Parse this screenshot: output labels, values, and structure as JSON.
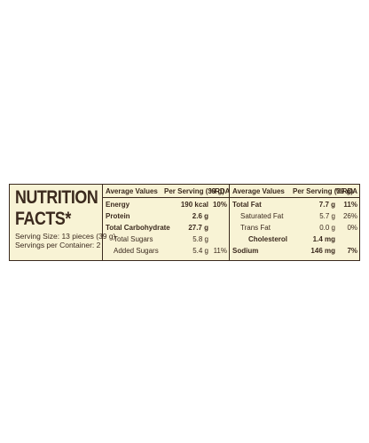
{
  "label": {
    "title_lines": [
      "NUTRITION",
      "FACTS*"
    ],
    "serving_size": "Serving Size: 13 pieces (39 g)",
    "servings": "Servings per Container: 2",
    "tables": [
      {
        "headers": [
          "Average Values",
          "Per Serving (39 g)",
          "%RDA"
        ],
        "rows": [
          {
            "name": "Energy",
            "amount": "190  kcal",
            "rda": "10%",
            "style": "bold"
          },
          {
            "name": "Protein",
            "amount": "2.6 g",
            "style": "bold"
          },
          {
            "name": "Total Carbohydrate",
            "amount": "27.7 g",
            "style": "bold"
          },
          {
            "name": "Total Sugars",
            "amount": "5.8 g",
            "style": "indent"
          },
          {
            "name": "Added Sugars",
            "amount": "5.4 g",
            "rda": "11%",
            "style": "indent"
          }
        ]
      },
      {
        "headers": [
          "Average Values",
          "Per Serving (39 g)",
          "%RDA"
        ],
        "rows": [
          {
            "name": "Total Fat",
            "amount": "7.7 g",
            "rda": "11%",
            "style": "bold"
          },
          {
            "name": "Saturated Fat",
            "amount": "5.7 g",
            "rda": "26%",
            "style": "indent"
          },
          {
            "name": "Trans Fat",
            "amount": "0.0 g",
            "rda": "0%",
            "style": "indent"
          },
          {
            "name": "Cholesterol",
            "amount": "1.4 mg",
            "style": "bold-indent"
          },
          {
            "name": "Sodium",
            "amount": "146  mg",
            "rda": "7%",
            "style": "bold"
          }
        ]
      }
    ]
  }
}
